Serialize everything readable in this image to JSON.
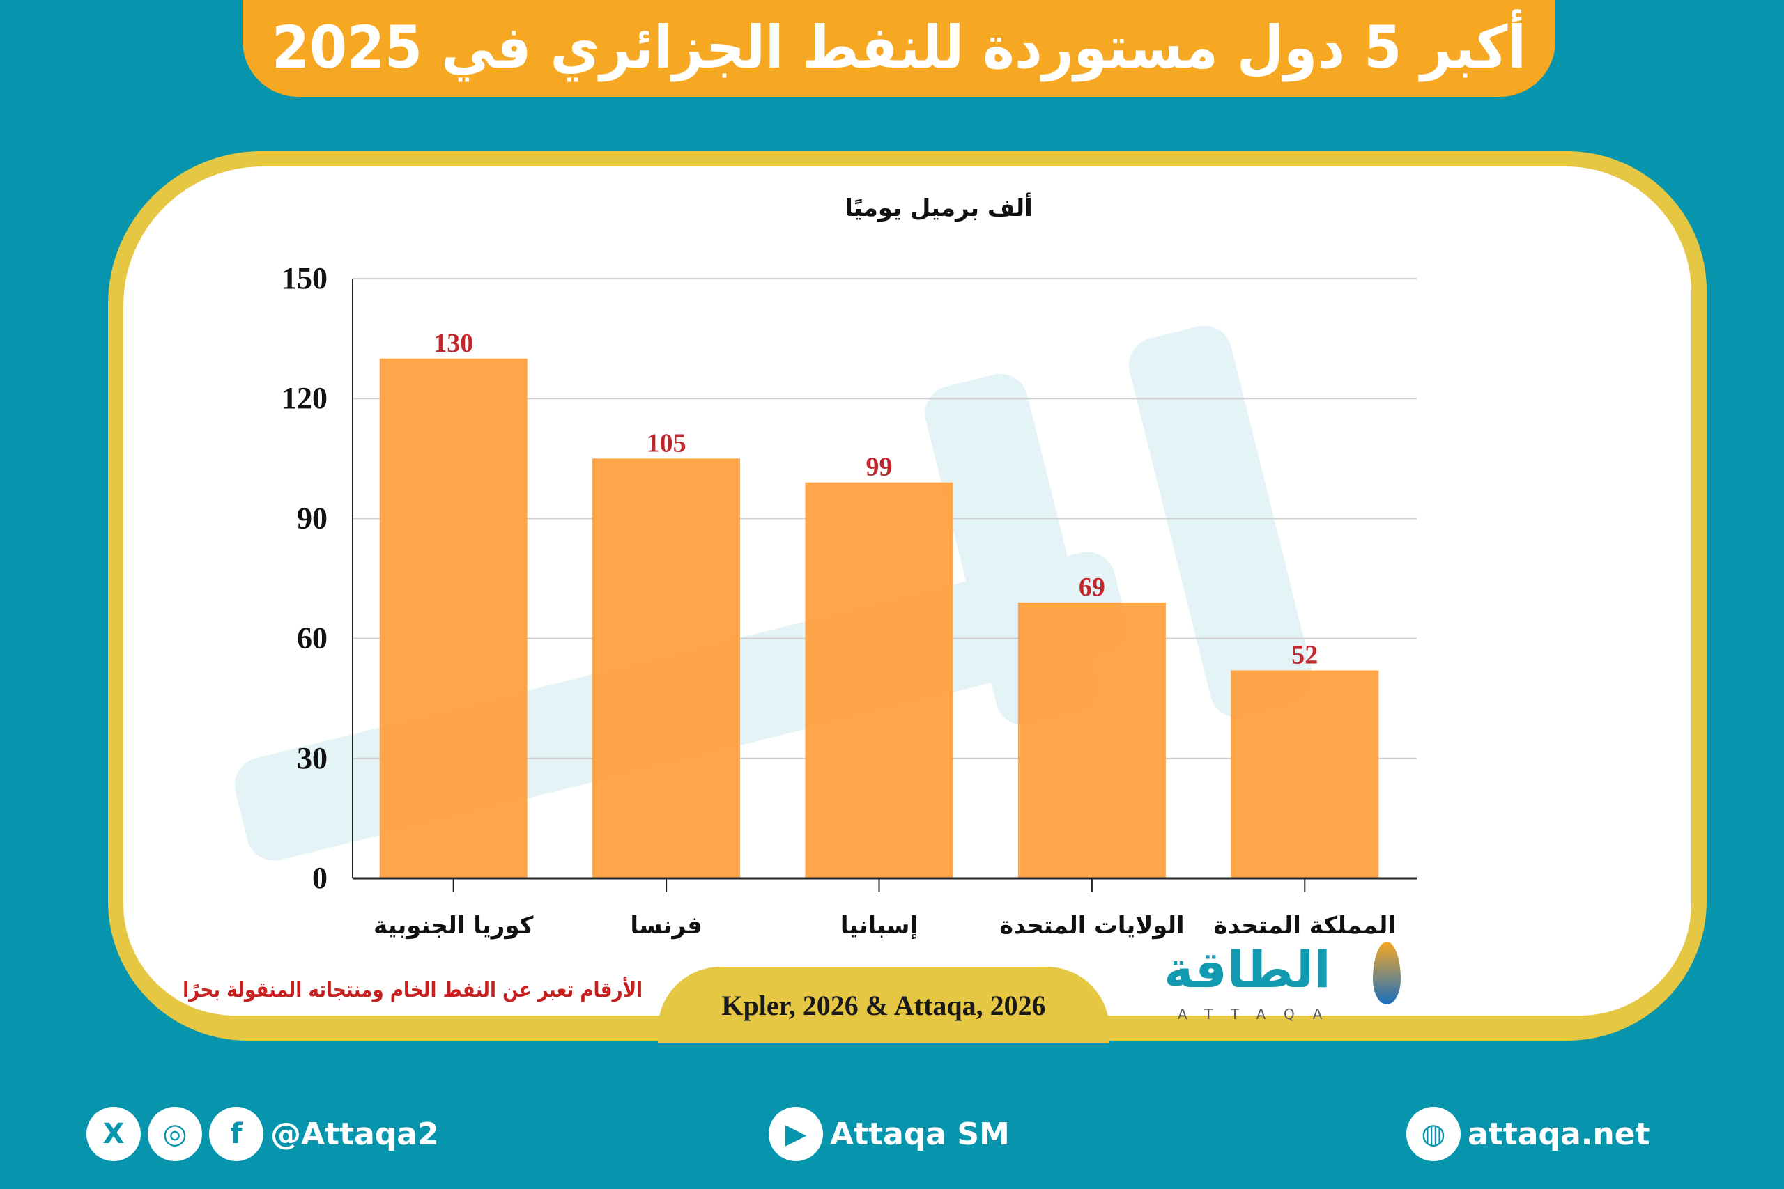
{
  "title": "أكبر 5 دول مستوردة للنفط الجزائري في 2025",
  "note": "الأرقام تعبر عن النفط الخام ومنتجاته المنقولة بحرًا",
  "source": "Kpler, 2026 & Attaqa, 2026",
  "logo": {
    "ar": "الطاقة",
    "en": "ATTAQA"
  },
  "footer": {
    "social_handle": "@Attaqa2",
    "youtube": "Attaqa SM",
    "website": "attaqa.net"
  },
  "colors": {
    "background": "#0795ad",
    "banner": "#f7a823",
    "bar": "#ffa040",
    "value_label": "#c0282d",
    "frame": "#e6c744"
  },
  "chart_data": {
    "type": "bar",
    "ylabel": "ألف برميل يوميًا",
    "categories": [
      "كوريا الجنوبية",
      "فرنسا",
      "إسبانيا",
      "الولايات المتحدة",
      "المملكة المتحدة"
    ],
    "values": [
      130,
      105,
      99,
      69,
      52
    ],
    "ylim": [
      0,
      150
    ],
    "yticks": [
      0,
      30,
      60,
      90,
      120,
      150
    ],
    "grid": true
  }
}
